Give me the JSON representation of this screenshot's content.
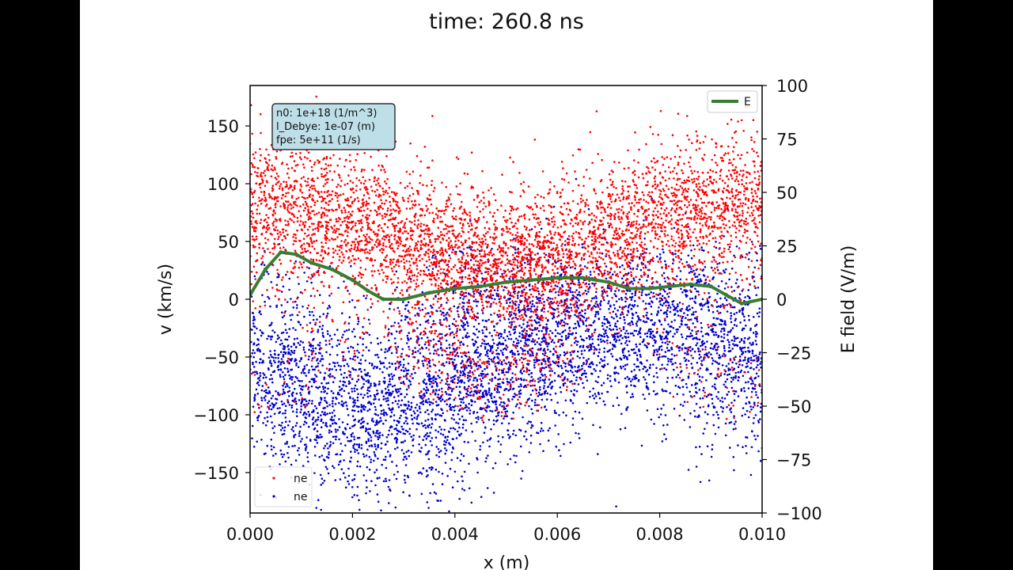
{
  "title": "time: 260.8 ns",
  "chart_data": {
    "type": "scatter",
    "xlabel": "x (m)",
    "ylabel": "v (km/s)",
    "y2label": "E field (V/m)",
    "xlim": [
      0,
      0.01
    ],
    "ylim": [
      -185,
      185
    ],
    "y2lim": [
      -100,
      100
    ],
    "xticks": [
      "0.000",
      "0.002",
      "0.004",
      "0.006",
      "0.008",
      "0.010"
    ],
    "xtick_values": [
      0,
      0.002,
      0.004,
      0.006,
      0.008,
      0.01
    ],
    "yticks": [
      "−150",
      "−100",
      "−50",
      "0",
      "50",
      "100",
      "150"
    ],
    "ytick_values": [
      -150,
      -100,
      -50,
      0,
      50,
      100,
      150
    ],
    "y2ticks": [
      "−100",
      "−75",
      "−50",
      "−25",
      "0",
      "25",
      "50",
      "75",
      "100"
    ],
    "y2tick_values": [
      -100,
      -75,
      -50,
      -25,
      0,
      25,
      50,
      75,
      100
    ],
    "info_box": [
      "n0: 1e+18 (1/m^3)",
      "l_Debye: 1e-07 (m)",
      "fpe: 5e+11 (1/s)"
    ],
    "series": [
      {
        "name": "ne",
        "color": "#ff0000",
        "kind": "points",
        "beam_velocity_kms": 60
      },
      {
        "name": "ne",
        "color": "#0000cc",
        "kind": "points",
        "beam_velocity_kms": -60
      },
      {
        "name": "E",
        "color": "#3a7d32",
        "kind": "line",
        "axis": "right",
        "x": [
          0,
          0.0003,
          0.0006,
          0.0009,
          0.0012,
          0.0016,
          0.002,
          0.0023,
          0.0026,
          0.003,
          0.0035,
          0.004,
          0.0045,
          0.005,
          0.0055,
          0.006,
          0.0065,
          0.007,
          0.0074,
          0.0078,
          0.0082,
          0.0086,
          0.009,
          0.0093,
          0.0096,
          0.01
        ],
        "y": [
          2,
          14,
          22,
          21,
          17,
          14,
          9,
          4,
          0,
          0,
          3,
          5,
          6,
          8,
          9,
          10,
          10,
          8,
          5,
          5,
          6,
          7,
          6,
          2,
          -2,
          0
        ]
      }
    ],
    "legend_top": {
      "label": "E",
      "color": "#3a7d32",
      "placement": "upper right"
    },
    "legend_bottom": [
      {
        "label": "ne",
        "color": "#ff0000"
      },
      {
        "label": "ne",
        "color": "#0000cc"
      }
    ],
    "legend_bottom_placement": "lower left"
  }
}
